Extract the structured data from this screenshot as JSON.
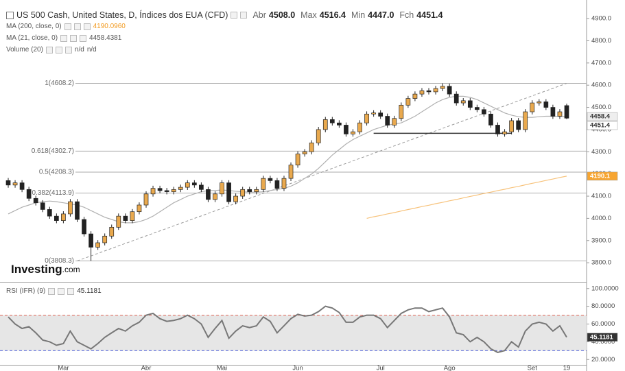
{
  "chart_data": [
    {
      "type": "candlestick",
      "title": "US 500 Cash, United States, D, Índices dos EUA (CFD)",
      "ohlc_legend": [
        {
          "name": "Abr",
          "text": "4508.0"
        },
        {
          "name": "Max",
          "text": "4516.4"
        },
        {
          "name": "Min",
          "text": "4447.0"
        },
        {
          "name": "Fch",
          "text": "4451.4"
        }
      ],
      "indicators": [
        {
          "name": "MA (200, close, 0)",
          "text": "4190.0960"
        },
        {
          "name": "MA (21, close, 0)",
          "text": "4458.4381"
        },
        {
          "name": "Volume (20)",
          "text": "n/d",
          "text2": "n/d"
        }
      ],
      "logo": "Investing",
      "logo_suffix": ".com",
      "categories": [
        null,
        null,
        null,
        null,
        null,
        null,
        null,
        null,
        "Mar",
        null,
        null,
        null,
        null,
        null,
        null,
        null,
        null,
        null,
        null,
        null,
        "Abr",
        null,
        null,
        null,
        null,
        null,
        null,
        null,
        null,
        null,
        null,
        "Mai",
        null,
        null,
        null,
        null,
        null,
        null,
        null,
        null,
        null,
        null,
        "Jun",
        null,
        null,
        null,
        null,
        null,
        null,
        null,
        null,
        null,
        null,
        null,
        "Jul",
        null,
        null,
        null,
        null,
        null,
        null,
        null,
        null,
        null,
        "Ago",
        null,
        null,
        null,
        null,
        null,
        null,
        null,
        null,
        null,
        null,
        null,
        "Set",
        null,
        null,
        null,
        null,
        "19"
      ],
      "open": [
        4170,
        4150,
        4160,
        4130,
        4090,
        4070,
        4040,
        4010,
        3990,
        4020,
        4075,
        3995,
        3930,
        3870,
        3890,
        3920,
        3960,
        4010,
        3990,
        4030,
        4060,
        4110,
        4135,
        4125,
        4120,
        4130,
        4140,
        4160,
        4150,
        4130,
        4085,
        4110,
        4160,
        4075,
        4100,
        4130,
        4120,
        4130,
        4180,
        4170,
        4135,
        4180,
        4240,
        4290,
        4300,
        4340,
        4400,
        4445,
        4430,
        4420,
        4380,
        4390,
        4430,
        4470,
        4475,
        4460,
        4420,
        4450,
        4510,
        4540,
        4560,
        4575,
        4570,
        4585,
        4595,
        4560,
        4520,
        4530,
        4500,
        4490,
        4470,
        4420,
        4380,
        4390,
        4440,
        4400,
        4480,
        4520,
        4525,
        4500,
        4460,
        4508.0
      ],
      "high": [
        4182,
        4172,
        4172,
        4142,
        4102,
        4082,
        4052,
        4022,
        4032,
        4087,
        4087,
        4007,
        3942,
        3902,
        3932,
        3972,
        4022,
        4022,
        4042,
        4072,
        4122,
        4147,
        4147,
        4137,
        4142,
        4152,
        4172,
        4172,
        4162,
        4142,
        4122,
        4172,
        4172,
        4112,
        4142,
        4142,
        4142,
        4192,
        4192,
        4182,
        4192,
        4252,
        4302,
        4312,
        4352,
        4412,
        4457,
        4457,
        4442,
        4432,
        4402,
        4442,
        4482,
        4487,
        4487,
        4472,
        4462,
        4522,
        4552,
        4572,
        4587,
        4587,
        4597,
        4608.2,
        4607,
        4572,
        4542,
        4542,
        4512,
        4502,
        4482,
        4432,
        4402,
        4452,
        4452,
        4492,
        4532,
        4537,
        4537,
        4512,
        4492,
        4516.4
      ],
      "low": [
        4138,
        4138,
        4118,
        4078,
        4058,
        4028,
        3998,
        3978,
        3978,
        4008,
        3983,
        3918,
        3808.3,
        3858,
        3878,
        3908,
        3948,
        3978,
        3978,
        4018,
        4048,
        4098,
        4113,
        4108,
        4108,
        4118,
        4128,
        4138,
        4118,
        4073,
        4073,
        4098,
        4063,
        4063,
        4088,
        4108,
        4108,
        4118,
        4158,
        4123,
        4123,
        4168,
        4228,
        4278,
        4288,
        4328,
        4388,
        4418,
        4408,
        4368,
        4368,
        4378,
        4418,
        4458,
        4448,
        4408,
        4408,
        4438,
        4498,
        4528,
        4548,
        4558,
        4558,
        4573,
        4548,
        4508,
        4508,
        4488,
        4478,
        4458,
        4408,
        4368,
        4368,
        4378,
        4388,
        4388,
        4468,
        4508,
        4488,
        4448,
        4448,
        4447.0
      ],
      "close": [
        4150,
        4160,
        4130,
        4090,
        4070,
        4040,
        4010,
        3990,
        4020,
        4075,
        3995,
        3930,
        3870,
        3890,
        3920,
        3960,
        4010,
        3990,
        4030,
        4060,
        4110,
        4135,
        4125,
        4120,
        4130,
        4140,
        4160,
        4150,
        4130,
        4085,
        4110,
        4160,
        4075,
        4100,
        4130,
        4120,
        4130,
        4180,
        4170,
        4135,
        4180,
        4240,
        4290,
        4300,
        4340,
        4400,
        4445,
        4430,
        4420,
        4380,
        4390,
        4430,
        4470,
        4475,
        4460,
        4420,
        4450,
        4510,
        4540,
        4560,
        4575,
        4570,
        4585,
        4595,
        4560,
        4520,
        4530,
        4500,
        4490,
        4470,
        4420,
        4380,
        4390,
        4440,
        4400,
        4480,
        4520,
        4525,
        4500,
        4460,
        4480,
        4451.4
      ],
      "up_color": "#e9a94e",
      "down_color": "#222222",
      "series": [
        {
          "color": "#b0b0b0",
          "values": [
            4020,
            4035,
            4050,
            4060,
            4070,
            4075,
            4078,
            4075,
            4070,
            4065,
            4060,
            4050,
            4035,
            4020,
            4005,
            3995,
            3985,
            3980,
            3980,
            3985,
            3995,
            4010,
            4030,
            4050,
            4070,
            4085,
            4100,
            4110,
            4120,
            4125,
            4125,
            4128,
            4125,
            4122,
            4120,
            4118,
            4118,
            4120,
            4125,
            4130,
            4135,
            4145,
            4160,
            4180,
            4200,
            4225,
            4255,
            4285,
            4310,
            4335,
            4355,
            4370,
            4385,
            4400,
            4410,
            4420,
            4425,
            4430,
            4445,
            4460,
            4480,
            4500,
            4520,
            4535,
            4545,
            4550,
            4550,
            4545,
            4535,
            4520,
            4505,
            4490,
            4475,
            4465,
            4458,
            4455,
            4455,
            4458,
            4460,
            4460,
            4459,
            4458.4381
          ]
        },
        {
          "color": "#f7c27a",
          "values": [
            null,
            null,
            null,
            null,
            null,
            null,
            null,
            null,
            null,
            null,
            null,
            null,
            null,
            null,
            null,
            null,
            null,
            null,
            null,
            null,
            null,
            null,
            null,
            null,
            null,
            null,
            null,
            null,
            null,
            null,
            null,
            null,
            null,
            null,
            null,
            null,
            null,
            null,
            null,
            null,
            null,
            null,
            null,
            null,
            null,
            null,
            null,
            null,
            null,
            null,
            null,
            null,
            4000,
            4007,
            4013,
            4020,
            4026,
            4033,
            4040,
            4046,
            4053,
            4059,
            4066,
            4072,
            4079,
            4085,
            4092,
            4099,
            4105,
            4112,
            4118,
            4125,
            4131,
            4138,
            4144,
            4151,
            4158,
            4164,
            4171,
            4177,
            4184,
            4190.096
          ]
        }
      ],
      "levels": [
        {
          "value": 4608.2,
          "label": "1(4608.2)"
        },
        {
          "value": 4302.7,
          "label": "0.618(4302.7)"
        },
        {
          "value": 4208.3,
          "label": "0.5(4208.3)"
        },
        {
          "value": 4113.9,
          "label": "0.382(4113.9)"
        },
        {
          "value": 3808.3,
          "label": "0(3808.3)"
        }
      ],
      "trend_line": [
        3808.3,
        4608.2
      ],
      "support_level": 4383,
      "price_tags": [
        {
          "value": 4458.4,
          "label": "4458.4",
          "color": "#eeeeee",
          "text_color": "#333333"
        },
        {
          "value": 4451.4,
          "label": "4451.4",
          "color": "#ffffff",
          "text_color": "#333333"
        },
        {
          "value": 4190.1,
          "label": "4190.1",
          "color": "#f7a531",
          "text_color": "#ffffff"
        }
      ],
      "ylim": [
        3717,
        4959
      ],
      "yticks": [
        {
          "value": 3800,
          "label": "3800.0"
        },
        {
          "value": 3900,
          "label": "3900.0"
        },
        {
          "value": 4000,
          "label": "4000.0"
        },
        {
          "value": 4100,
          "label": "4100.0"
        },
        {
          "value": 4200,
          "label": "4200.0"
        },
        {
          "value": 4300,
          "label": "4300.0"
        },
        {
          "value": 4400,
          "label": "4400.0"
        },
        {
          "value": 4500,
          "label": "4500.0"
        },
        {
          "value": 4600,
          "label": "4600.0"
        },
        {
          "value": 4700,
          "label": "4700.0"
        },
        {
          "value": 4800,
          "label": "4800.0"
        },
        {
          "value": 4900,
          "label": "4900.0"
        }
      ],
      "grid": false
    },
    {
      "type": "line",
      "title": "RSI (IFR) (9)",
      "value_text": "45.1181",
      "color": "#777777",
      "values": [
        68,
        60,
        55,
        57,
        50,
        42,
        40,
        36,
        38,
        52,
        40,
        36,
        32,
        38,
        45,
        50,
        55,
        52,
        58,
        62,
        70,
        72,
        66,
        63,
        64,
        66,
        70,
        66,
        60,
        45,
        55,
        64,
        44,
        52,
        58,
        56,
        58,
        68,
        63,
        50,
        58,
        66,
        71,
        69,
        70,
        74,
        80,
        78,
        73,
        62,
        62,
        68,
        70,
        70,
        66,
        56,
        64,
        72,
        76,
        78,
        78,
        74,
        76,
        78,
        68,
        50,
        48,
        40,
        45,
        40,
        32,
        28,
        30,
        40,
        34,
        52,
        60,
        62,
        60,
        52,
        58,
        45.1181
      ],
      "bands": [
        {
          "value": 70,
          "color": "#e06050"
        },
        {
          "value": 30,
          "color": "#4a5bd8"
        }
      ],
      "band_fill": "#e6e6e6",
      "tag": {
        "value": 45.1181,
        "label": "45.1181",
        "color": "#333333",
        "text_color": "#ffffff"
      },
      "ylim": [
        14,
        106
      ],
      "yticks": [
        {
          "value": 20,
          "label": "20.0000"
        },
        {
          "value": 40,
          "label": "40.0000"
        },
        {
          "value": 60,
          "label": "60.0000"
        },
        {
          "value": 80,
          "label": "80.0000"
        },
        {
          "value": 100,
          "label": "100.0000"
        }
      ],
      "grid": false
    }
  ]
}
